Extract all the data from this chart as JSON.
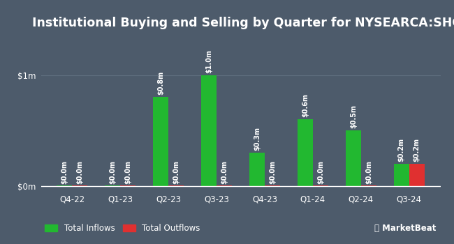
{
  "title": "Institutional Buying and Selling by Quarter for NYSEARCA:SHOC",
  "quarters": [
    "Q4-22",
    "Q1-23",
    "Q2-23",
    "Q3-23",
    "Q4-23",
    "Q1-24",
    "Q2-24",
    "Q3-24"
  ],
  "inflows": [
    0.001,
    0.001,
    0.8,
    1.0,
    0.3,
    0.6,
    0.5,
    0.2
  ],
  "outflows": [
    0.001,
    0.001,
    0.001,
    0.001,
    0.001,
    0.001,
    0.001,
    0.2
  ],
  "inflow_labels": [
    "$0.0m",
    "$0.0m",
    "$0.8m",
    "$1.0m",
    "$0.3m",
    "$0.6m",
    "$0.5m",
    "$0.2m"
  ],
  "outflow_labels": [
    "$0.0m",
    "$0.0m",
    "$0.0m",
    "$0.0m",
    "$0.0m",
    "$0.0m",
    "$0.0m",
    "$0.2m"
  ],
  "inflow_color": "#22b830",
  "outflow_color": "#e03030",
  "background_color": "#4d5b6b",
  "text_color": "#ffffff",
  "grid_color": "#5e6e7e",
  "yticks": [
    0.0,
    1.0
  ],
  "ytick_labels": [
    "$0m",
    "$1m"
  ],
  "ylim": [
    -0.04,
    1.28
  ],
  "bar_width": 0.32,
  "title_fontsize": 12.5,
  "label_fontsize": 7,
  "tick_fontsize": 8.5,
  "legend_fontsize": 8.5
}
